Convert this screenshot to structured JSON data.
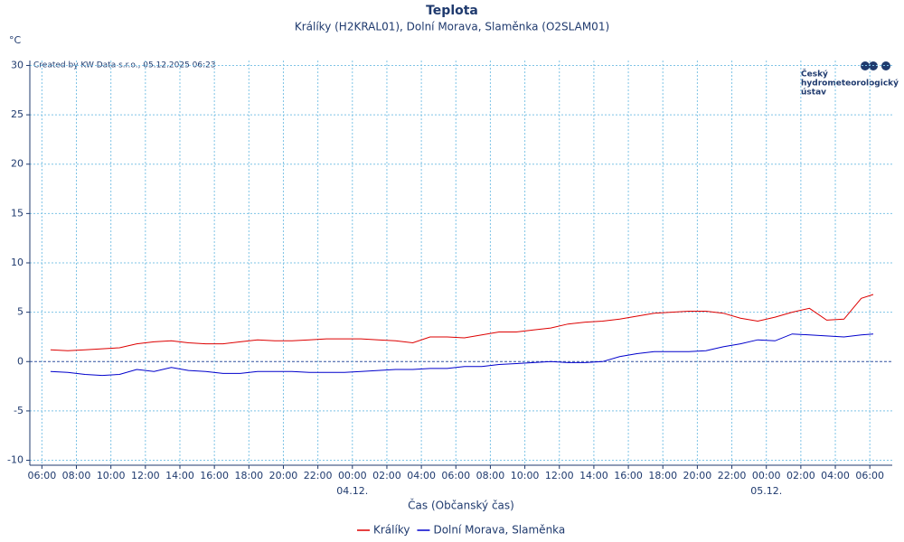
{
  "chart_data": {
    "type": "line",
    "title": "Teplota",
    "subtitle": "Králíky (H2KRAL01), Dolní Morava, Slaměnka (O2SLAM01)",
    "y_label": "°C",
    "x_label": "Čas (Občanský čas)",
    "credit": "Created by KW Data s.r.o., 05.12.2025 06:23",
    "logo": [
      "Český",
      "hydrometeorologický",
      "ústav"
    ],
    "x": [
      6.5,
      7.5,
      8.5,
      9.5,
      10.5,
      11.5,
      12.5,
      13.5,
      14.5,
      15.5,
      16.5,
      17.5,
      18.5,
      19.5,
      20.5,
      21.5,
      22.5,
      23.5,
      24.5,
      25.5,
      26.5,
      27.5,
      28.5,
      29.5,
      30.5,
      31.5,
      32.5,
      33.5,
      34.5,
      35.5,
      36.5,
      37.5,
      38.5,
      39.5,
      40.5,
      41.5,
      42.5,
      43.5,
      44.5,
      45.5,
      46.5,
      47.5,
      48.5,
      49.5,
      50.5,
      51.5,
      52.5,
      53.5,
      54.2
    ],
    "series": [
      {
        "name": "Králíky",
        "color": "#dd0000",
        "values": [
          1.2,
          1.1,
          1.2,
          1.3,
          1.4,
          1.8,
          2.0,
          2.1,
          1.9,
          1.8,
          1.8,
          2.0,
          2.2,
          2.1,
          2.1,
          2.2,
          2.3,
          2.3,
          2.3,
          2.2,
          2.1,
          1.9,
          2.5,
          2.5,
          2.4,
          2.7,
          3.0,
          3.0,
          3.2,
          3.4,
          3.8,
          4.0,
          4.1,
          4.3,
          4.6,
          4.9,
          5.0,
          5.1,
          5.1,
          4.9,
          4.4,
          4.1,
          4.5,
          5.0,
          5.4,
          4.2,
          4.3,
          6.4,
          6.8
        ]
      },
      {
        "name": "Dolní Morava, Slaměnka",
        "color": "#0000cc",
        "values": [
          -1.0,
          -1.1,
          -1.3,
          -1.4,
          -1.3,
          -0.8,
          -1.0,
          -0.6,
          -0.9,
          -1.0,
          -1.2,
          -1.2,
          -1.0,
          -1.0,
          -1.0,
          -1.1,
          -1.1,
          -1.1,
          -1.0,
          -0.9,
          -0.8,
          -0.8,
          -0.7,
          -0.7,
          -0.5,
          -0.5,
          -0.3,
          -0.2,
          -0.1,
          0.0,
          -0.1,
          -0.1,
          0.0,
          0.5,
          0.8,
          1.0,
          1.0,
          1.0,
          1.1,
          1.5,
          1.8,
          2.2,
          2.1,
          2.8,
          2.7,
          2.6,
          2.5,
          2.7,
          2.8
        ]
      }
    ],
    "xlim": [
      5.3,
      55.3
    ],
    "xticks": [
      {
        "value": 6,
        "label": "06:00"
      },
      {
        "value": 8,
        "label": "08:00"
      },
      {
        "value": 10,
        "label": "10:00"
      },
      {
        "value": 12,
        "label": "12:00"
      },
      {
        "value": 14,
        "label": "14:00"
      },
      {
        "value": 16,
        "label": "16:00"
      },
      {
        "value": 18,
        "label": "18:00"
      },
      {
        "value": 20,
        "label": "20:00"
      },
      {
        "value": 22,
        "label": "22:00"
      },
      {
        "value": 24,
        "label": "00:00"
      },
      {
        "value": 26,
        "label": "02:00"
      },
      {
        "value": 28,
        "label": "04:00"
      },
      {
        "value": 30,
        "label": "06:00"
      },
      {
        "value": 32,
        "label": "08:00"
      },
      {
        "value": 34,
        "label": "10:00"
      },
      {
        "value": 36,
        "label": "12:00"
      },
      {
        "value": 38,
        "label": "14:00"
      },
      {
        "value": 40,
        "label": "16:00"
      },
      {
        "value": 42,
        "label": "18:00"
      },
      {
        "value": 44,
        "label": "20:00"
      },
      {
        "value": 46,
        "label": "22:00"
      },
      {
        "value": 48,
        "label": "00:00"
      },
      {
        "value": 50,
        "label": "02:00"
      },
      {
        "value": 52,
        "label": "04:00"
      },
      {
        "value": 54,
        "label": "06:00"
      }
    ],
    "xdates": [
      {
        "value": 24,
        "label": "04.12."
      },
      {
        "value": 48,
        "label": "05.12."
      }
    ],
    "ylim": [
      -10.5,
      30.5
    ],
    "yticks": [
      -10,
      -5,
      0,
      5,
      10,
      15,
      20,
      25,
      30
    ],
    "grid": true
  }
}
